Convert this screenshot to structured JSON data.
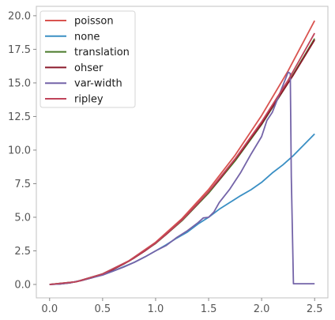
{
  "chart_data": {
    "type": "line",
    "title": "",
    "xlabel": "",
    "ylabel": "",
    "xlim": [
      -0.125,
      2.625
    ],
    "ylim": [
      -1.0,
      20.7
    ],
    "xticks": [
      0.0,
      0.5,
      1.0,
      1.5,
      2.0,
      2.5
    ],
    "xtick_labels": [
      "0.0",
      "0.5",
      "1.0",
      "1.5",
      "2.0",
      "2.5"
    ],
    "yticks": [
      0.0,
      2.5,
      5.0,
      7.5,
      10.0,
      12.5,
      15.0,
      17.5,
      20.0
    ],
    "ytick_labels": [
      "0.0",
      "2.5",
      "5.0",
      "7.5",
      "10.0",
      "12.5",
      "15.0",
      "17.5",
      "20.0"
    ],
    "grid": false,
    "legend_position": "top-left",
    "series": [
      {
        "name": "poisson",
        "color": "#d9534f",
        "x": [
          0.0,
          0.25,
          0.5,
          0.75,
          1.0,
          1.25,
          1.5,
          1.75,
          2.0,
          2.25,
          2.5
        ],
        "y": [
          0.0,
          0.2,
          0.79,
          1.77,
          3.14,
          4.91,
          7.07,
          9.62,
          12.57,
          15.9,
          19.63
        ]
      },
      {
        "name": "none",
        "color": "#3a8fc4",
        "x": [
          0.0,
          0.1,
          0.2,
          0.3,
          0.4,
          0.5,
          0.6,
          0.7,
          0.8,
          0.9,
          1.0,
          1.1,
          1.2,
          1.3,
          1.4,
          1.5,
          1.6,
          1.7,
          1.8,
          1.9,
          2.0,
          2.1,
          2.2,
          2.3,
          2.4,
          2.5
        ],
        "y": [
          0.0,
          0.04,
          0.13,
          0.3,
          0.5,
          0.72,
          1.0,
          1.32,
          1.65,
          2.05,
          2.5,
          2.95,
          3.45,
          3.9,
          4.5,
          5.0,
          5.6,
          6.1,
          6.6,
          7.05,
          7.6,
          8.3,
          8.9,
          9.6,
          10.4,
          11.2
        ]
      },
      {
        "name": "translation",
        "color": "#4a7a2a",
        "x": [
          0.0,
          0.25,
          0.5,
          0.75,
          1.0,
          1.25,
          1.5,
          1.75,
          2.0,
          2.25,
          2.5
        ],
        "y": [
          0.0,
          0.2,
          0.78,
          1.74,
          3.05,
          4.75,
          6.8,
          9.2,
          11.9,
          15.0,
          18.3
        ]
      },
      {
        "name": "ohser",
        "color": "#8b1a2b",
        "x": [
          0.0,
          0.1,
          0.2,
          0.3,
          0.4,
          0.5,
          0.6,
          0.7,
          0.8,
          0.9,
          1.0,
          1.1,
          1.2,
          1.3,
          1.4,
          1.5,
          1.6,
          1.7,
          1.8,
          1.9,
          2.0,
          2.1,
          2.2,
          2.3,
          2.4,
          2.5
        ],
        "y": [
          0.0,
          0.04,
          0.13,
          0.29,
          0.5,
          0.77,
          1.12,
          1.52,
          1.98,
          2.5,
          3.08,
          3.73,
          4.44,
          5.2,
          6.03,
          6.9,
          7.8,
          8.82,
          9.8,
          10.9,
          11.95,
          13.2,
          14.4,
          15.6,
          16.9,
          18.2
        ]
      },
      {
        "name": "var-width",
        "color": "#7464a8",
        "x": [
          0.0,
          0.1,
          0.2,
          0.3,
          0.4,
          0.5,
          0.6,
          0.7,
          0.8,
          0.9,
          1.0,
          1.1,
          1.2,
          1.3,
          1.4,
          1.45,
          1.5,
          1.55,
          1.6,
          1.7,
          1.8,
          1.9,
          2.0,
          2.05,
          2.1,
          2.15,
          2.2,
          2.25,
          2.27,
          2.28,
          2.3,
          2.4,
          2.5
        ],
        "y": [
          0.0,
          0.04,
          0.14,
          0.3,
          0.5,
          0.7,
          1.0,
          1.3,
          1.65,
          2.05,
          2.5,
          2.9,
          3.5,
          4.0,
          4.6,
          4.95,
          5.0,
          5.4,
          6.1,
          7.1,
          8.3,
          9.7,
          11.0,
          12.2,
          12.8,
          13.8,
          14.8,
          15.8,
          15.7,
          8.0,
          0.05,
          0.05,
          0.05
        ]
      },
      {
        "name": "ripley",
        "color": "#c0445a",
        "x": [
          0.0,
          0.25,
          0.5,
          0.75,
          1.0,
          1.25,
          1.5,
          1.75,
          2.0,
          2.25,
          2.5
        ],
        "y": [
          0.0,
          0.2,
          0.78,
          1.75,
          3.08,
          4.8,
          6.9,
          9.35,
          12.1,
          15.2,
          18.7
        ]
      }
    ]
  }
}
